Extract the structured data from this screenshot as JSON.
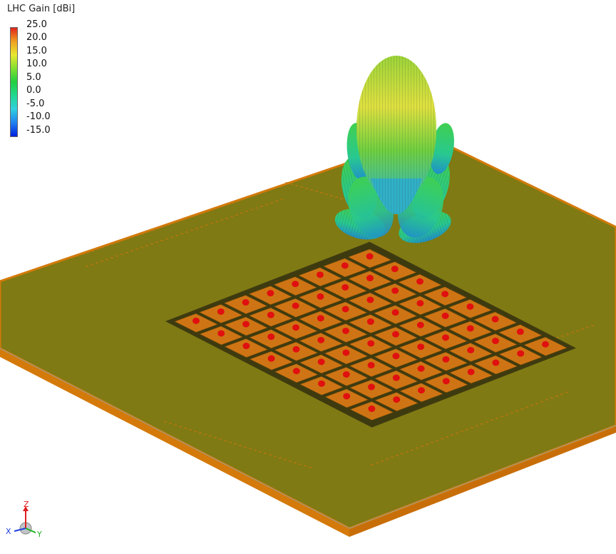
{
  "legend": {
    "title": "LHC Gain [dBi]",
    "ticks": [
      "25.0",
      "20.0",
      "15.0",
      "10.0",
      "5.0",
      "0.0",
      "-5.0",
      "-10.0",
      "-15.0"
    ],
    "colors": [
      "#e0231c",
      "#f0a020",
      "#e8e830",
      "#80e030",
      "#20d040",
      "#20d890",
      "#30d0e0",
      "#2080f0",
      "#0020e0"
    ]
  },
  "axes": {
    "x": "X",
    "y": "Y",
    "z": "Z"
  },
  "colors": {
    "board": "#7f7a13",
    "board_edge": "#d47a0a",
    "patch": "#cf7414",
    "feed": "#e01010",
    "lobe_main": "#d8e040",
    "lobe_side": "#30c850"
  },
  "array": {
    "rows": 8,
    "cols": 8
  }
}
